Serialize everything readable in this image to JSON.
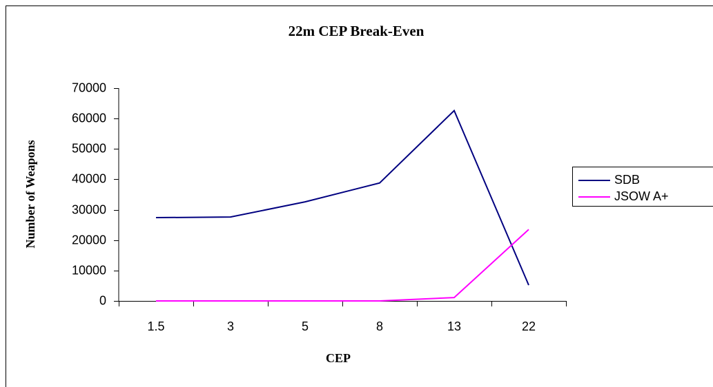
{
  "chart_data": {
    "type": "line",
    "title": "22m CEP Break-Even",
    "x_label": "CEP",
    "y_label": "Number of Weapons",
    "categories": [
      "1.5",
      "3",
      "5",
      "8",
      "13",
      "22"
    ],
    "series": [
      {
        "name": "SDB",
        "color": "#000080",
        "values": [
          27400,
          27600,
          32600,
          38800,
          62600,
          5200
        ]
      },
      {
        "name": "JSOW A+",
        "color": "#ff00ff",
        "values": [
          0,
          0,
          0,
          0,
          1100,
          23500
        ]
      }
    ],
    "ylim": [
      0,
      70000
    ],
    "yticks": [
      0,
      10000,
      20000,
      30000,
      40000,
      50000,
      60000,
      70000
    ],
    "grid": false,
    "legend": "right"
  }
}
